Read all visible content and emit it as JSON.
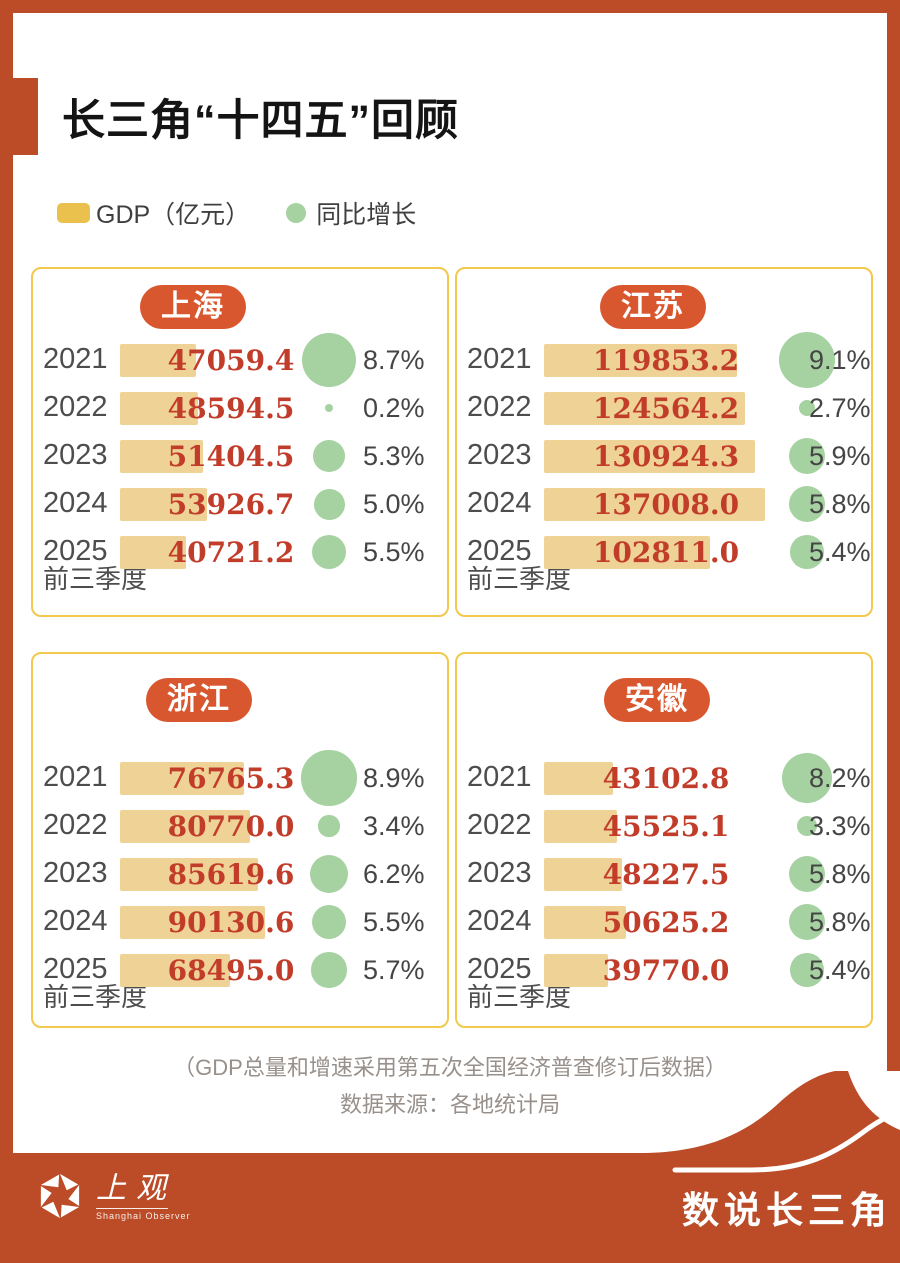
{
  "page": {
    "title": "长三角“十四五”回顾",
    "legend": {
      "gdp_label": "GDP（亿元）",
      "growth_label": "同比增长"
    },
    "quarter_note": "前三季度",
    "notes": [
      "（GDP总量和增速采用第五次全国经济普查修订后数据）",
      "数据来源：各地统计局"
    ],
    "footer": {
      "logo_cn": "上观",
      "logo_en": "Shanghai Observer",
      "series_title": "数说长三角"
    }
  },
  "colors": {
    "frame": "#BC4C28",
    "badge": "#D9572E",
    "bar": "#EFD295",
    "bubble": "#A5D2A0",
    "value_text": "#C23C2A",
    "panel_border": "#F2C84D",
    "legend_swatch": "#EBC14D"
  },
  "chart_data": [
    {
      "type": "bar",
      "title": "上海",
      "categories": [
        "2021",
        "2022",
        "2023",
        "2024",
        "2025"
      ],
      "series": [
        {
          "name": "GDP（亿元）",
          "values": [
            47059.4,
            48594.5,
            51404.5,
            53926.7,
            40721.2
          ]
        },
        {
          "name": "同比增长（%）",
          "values": [
            8.7,
            0.2,
            5.3,
            5.0,
            5.5
          ]
        }
      ]
    },
    {
      "type": "bar",
      "title": "江苏",
      "categories": [
        "2021",
        "2022",
        "2023",
        "2024",
        "2025"
      ],
      "series": [
        {
          "name": "GDP（亿元）",
          "values": [
            119853.2,
            124564.2,
            130924.3,
            137008.0,
            102811.0
          ]
        },
        {
          "name": "同比增长（%）",
          "values": [
            9.1,
            2.7,
            5.9,
            5.8,
            5.4
          ]
        }
      ]
    },
    {
      "type": "bar",
      "title": "浙江",
      "categories": [
        "2021",
        "2022",
        "2023",
        "2024",
        "2025"
      ],
      "series": [
        {
          "name": "GDP（亿元）",
          "values": [
            76765.3,
            80770.0,
            85619.6,
            90130.6,
            68495.0
          ]
        },
        {
          "name": "同比增长（%）",
          "values": [
            8.9,
            3.4,
            6.2,
            5.5,
            5.7
          ]
        }
      ]
    },
    {
      "type": "bar",
      "title": "安徽",
      "categories": [
        "2021",
        "2022",
        "2023",
        "2024",
        "2025"
      ],
      "series": [
        {
          "name": "GDP（亿元）",
          "values": [
            43102.8,
            45525.1,
            48227.5,
            50625.2,
            39770.0
          ]
        },
        {
          "name": "同比增长（%）",
          "values": [
            8.2,
            3.3,
            5.8,
            5.8,
            5.4
          ]
        }
      ]
    }
  ]
}
